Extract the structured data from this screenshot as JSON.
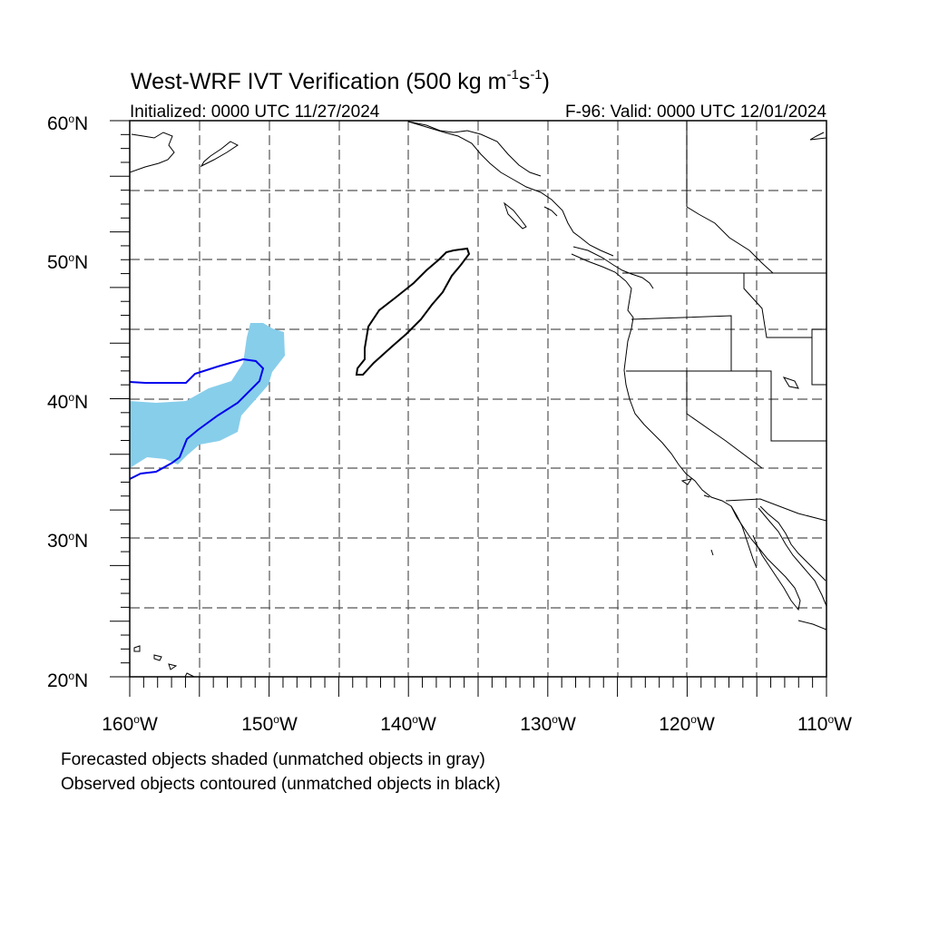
{
  "title": {
    "main": "West-WRF IVT Verification (500 kg m",
    "exp1": "-1",
    "mid": "s",
    "exp2": "-1",
    "close": ")"
  },
  "subtitle_left": "Initialized: 0000 UTC 11/27/2024",
  "subtitle_right": "F-96: Valid: 0000 UTC 12/01/2024",
  "lat_labels": [
    {
      "deg": "60",
      "hemi": "N"
    },
    {
      "deg": "50",
      "hemi": "N"
    },
    {
      "deg": "40",
      "hemi": "N"
    },
    {
      "deg": "30",
      "hemi": "N"
    },
    {
      "deg": "20",
      "hemi": "N"
    }
  ],
  "lon_labels": [
    {
      "deg": "160",
      "hemi": "W"
    },
    {
      "deg": "150",
      "hemi": "W"
    },
    {
      "deg": "140",
      "hemi": "W"
    },
    {
      "deg": "130",
      "hemi": "W"
    },
    {
      "deg": "120",
      "hemi": "W"
    },
    {
      "deg": "110",
      "hemi": "W"
    }
  ],
  "degree_symbol": "o",
  "footnote_1": "Forecasted objects shaded (unmatched objects in gray)",
  "footnote_2": "Observed objects contoured (unmatched objects in black)",
  "colors": {
    "forecast_matched_fill": "#87ceeb",
    "observed_matched_contour": "#0000ee",
    "observed_unmatched_contour": "#000000",
    "grid": "#555555"
  }
}
